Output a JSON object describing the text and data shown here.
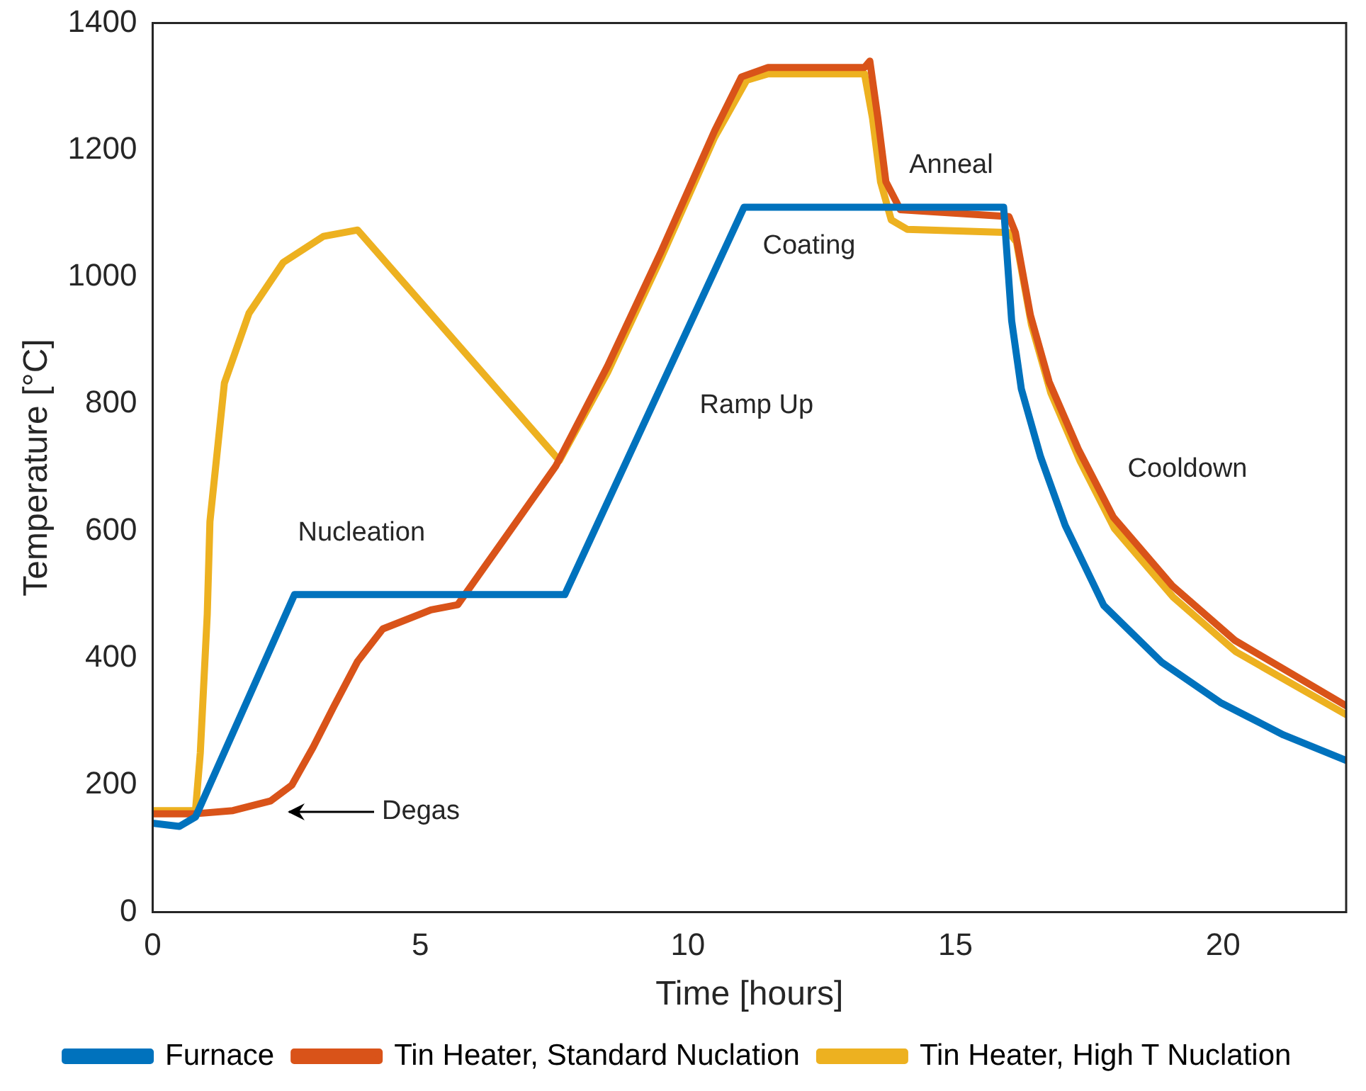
{
  "chart_data": {
    "type": "line",
    "xlabel": "Time [hours]",
    "ylabel": "Temperature [°C]",
    "xlim": [
      0,
      22.3
    ],
    "xticks": [
      0,
      5,
      10,
      15,
      20
    ],
    "ylim": [
      0,
      1400
    ],
    "yticks": [
      0,
      200,
      400,
      600,
      800,
      1000,
      1200,
      1400
    ],
    "grid": false,
    "legend": "bottom",
    "line_style": "solid",
    "marker": "none",
    "series": [
      {
        "name": "Furnace",
        "color": "#0072bd",
        "x": [
          0,
          0.5,
          0.8,
          2.65,
          7.7,
          11.05,
          15.9,
          16.05,
          16.23,
          16.59,
          17.05,
          17.77,
          18.86,
          19.95,
          21.13,
          22.3
        ],
        "values": [
          140,
          135,
          150,
          500,
          500,
          1110,
          1110,
          931,
          824,
          717,
          609,
          483,
          393,
          330,
          279,
          239
        ]
      },
      {
        "name": "Tin Heater, Standard Nuclation",
        "color": "#d95319",
        "x": [
          0,
          0.8,
          1.5,
          2.2,
          2.6,
          3.0,
          3.38,
          3.83,
          4.3,
          5.2,
          5.7,
          7.53,
          8.5,
          9.5,
          10.5,
          11.0,
          11.5,
          13.3,
          13.4,
          13.55,
          13.7,
          13.97,
          16.0,
          16.12,
          16.4,
          16.75,
          17.3,
          17.95,
          19.05,
          20.22,
          22.3
        ],
        "values": [
          155,
          155,
          160,
          175,
          200,
          260,
          323,
          395,
          446,
          476,
          484,
          702,
          860,
          1040,
          1230,
          1315,
          1330,
          1330,
          1340,
          1250,
          1150,
          1106,
          1095,
          1070,
          940,
          835,
          728,
          622,
          514,
          428,
          325
        ]
      },
      {
        "name": "Tin Heater, High T Nuclation",
        "color": "#edb120",
        "x": [
          0,
          0.8,
          0.89,
          1.02,
          1.07,
          1.34,
          1.8,
          2.44,
          3.19,
          3.83,
          7.6,
          8.5,
          9.5,
          10.5,
          11.1,
          11.5,
          13.3,
          13.45,
          13.6,
          13.8,
          14.1,
          16.0,
          16.14,
          16.42,
          16.78,
          17.33,
          17.97,
          19.07,
          20.24,
          22.3
        ],
        "values": [
          160,
          160,
          251,
          469,
          615,
          833,
          943,
          1023,
          1064,
          1074,
          711,
          850,
          1030,
          1220,
          1310,
          1320,
          1320,
          1250,
          1150,
          1090,
          1075,
          1070,
          1055,
          925,
          818,
          710,
          604,
          496,
          410,
          311
        ]
      }
    ],
    "annotations": [
      "Nucleation",
      "Degas",
      "Ramp Up",
      "Coating",
      "Anneal",
      "Cooldown"
    ]
  }
}
